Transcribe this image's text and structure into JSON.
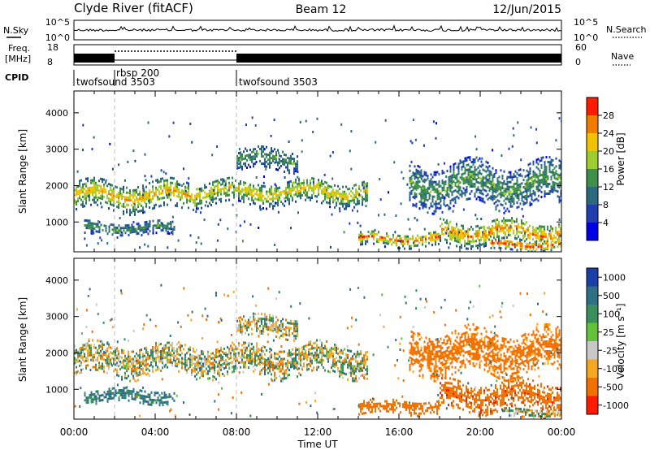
{
  "header": {
    "station": "Clyde River (fitACF)",
    "beam": "Beam 12",
    "date": "12/Jun/2015"
  },
  "top_panels": {
    "nsky_label": "N.Sky",
    "nsky_ticks": [
      "10^5",
      "10^0"
    ],
    "nsearch_label": "N.Search",
    "freq_label_1": "Freq.",
    "freq_label_2": "[MHz]",
    "freq_ticks": [
      "18",
      "8"
    ],
    "nave_ticks": [
      "60",
      "0"
    ],
    "nave_label": "Nave",
    "cpid_label": "CPID",
    "cpid_segments": [
      {
        "name": "twofsound 3503",
        "start": 0,
        "end": 2
      },
      {
        "name": "rbsp 200",
        "start": 2,
        "end": 8
      },
      {
        "name": "twofsound 3503",
        "start": 8,
        "end": 24
      }
    ]
  },
  "chart_data": [
    {
      "type": "heatmap",
      "title": "",
      "xlabel": "Time UT",
      "ylabel": "Slant Range [km]",
      "x_ticks": [
        "00:00",
        "04:00",
        "08:00",
        "12:00",
        "16:00",
        "20:00",
        "00:00"
      ],
      "y_ticks": [
        "1000",
        "2000",
        "3000",
        "4000"
      ],
      "xlim": [
        0,
        24
      ],
      "ylim": [
        180,
        4600
      ],
      "colorbar": {
        "label": "Power [dB]",
        "ticks": [
          "4",
          "8",
          "12",
          "16",
          "20",
          "24",
          "28"
        ],
        "range": [
          0,
          32
        ],
        "colors": [
          "#0000e6",
          "#1f3fb0",
          "#2a6a7c",
          "#3f8f4a",
          "#9ecd30",
          "#f2c200",
          "#f07d00",
          "#ff1a00"
        ]
      },
      "echo_regions": [
        {
          "t_start": 0.0,
          "t_end": 6.0,
          "r_center": 1700,
          "r_halfwidth": 400,
          "intensity": 0.75
        },
        {
          "t_start": 6.0,
          "t_end": 14.5,
          "r_center": 1800,
          "r_halfwidth": 350,
          "intensity": 0.7
        },
        {
          "t_start": 14.0,
          "t_end": 18.0,
          "r_center": 500,
          "r_halfwidth": 200,
          "intensity": 0.9
        },
        {
          "t_start": 18.0,
          "t_end": 24.0,
          "r_center": 700,
          "r_halfwidth": 350,
          "intensity": 0.85
        },
        {
          "t_start": 20.5,
          "t_end": 24.0,
          "r_center": 350,
          "r_halfwidth": 150,
          "intensity": 1.0
        },
        {
          "t_start": 8.0,
          "t_end": 11.0,
          "r_center": 2700,
          "r_halfwidth": 300,
          "intensity": 0.45
        },
        {
          "t_start": 16.5,
          "t_end": 24.0,
          "r_center": 2000,
          "r_halfwidth": 600,
          "intensity": 0.45
        },
        {
          "t_start": 0.5,
          "t_end": 5.0,
          "r_center": 800,
          "r_halfwidth": 200,
          "intensity": 0.4
        }
      ]
    },
    {
      "type": "heatmap",
      "title": "",
      "xlabel": "Time UT",
      "ylabel": "Slant Range [km]",
      "x_ticks": [
        "00:00",
        "04:00",
        "08:00",
        "12:00",
        "16:00",
        "20:00",
        "00:00"
      ],
      "y_ticks": [
        "1000",
        "2000",
        "3000",
        "4000"
      ],
      "xlim": [
        0,
        24
      ],
      "ylim": [
        180,
        4600
      ],
      "colorbar": {
        "label": "Velocity [m s⁻¹]",
        "ticks": [
          "1000",
          "500",
          "100",
          "25",
          "-25",
          "-100",
          "-500",
          "-1000"
        ],
        "colors": [
          "#1b3ea8",
          "#2e6f86",
          "#3b8f5c",
          "#63c23a",
          "#c8c8c8",
          "#f5a623",
          "#f07000",
          "#ff1a00"
        ]
      },
      "echo_regions": [
        {
          "t_start": 0.0,
          "t_end": 14.5,
          "r_center": 1800,
          "r_halfwidth": 450,
          "velocity": 0
        },
        {
          "t_start": 14.0,
          "t_end": 18.0,
          "r_center": 500,
          "r_halfwidth": 200,
          "velocity": -300
        },
        {
          "t_start": 18.0,
          "t_end": 24.0,
          "r_center": 800,
          "r_halfwidth": 400,
          "velocity": -400
        },
        {
          "t_start": 21.0,
          "t_end": 24.0,
          "r_center": 330,
          "r_halfwidth": 130,
          "velocity": 0
        },
        {
          "t_start": 0.5,
          "t_end": 5.0,
          "r_center": 800,
          "r_halfwidth": 200,
          "velocity": 150
        },
        {
          "t_start": 8.0,
          "t_end": 11.0,
          "r_center": 2700,
          "r_halfwidth": 300,
          "velocity": 0
        },
        {
          "t_start": 16.5,
          "t_end": 24.0,
          "r_center": 2000,
          "r_halfwidth": 600,
          "velocity": -200
        }
      ]
    }
  ]
}
